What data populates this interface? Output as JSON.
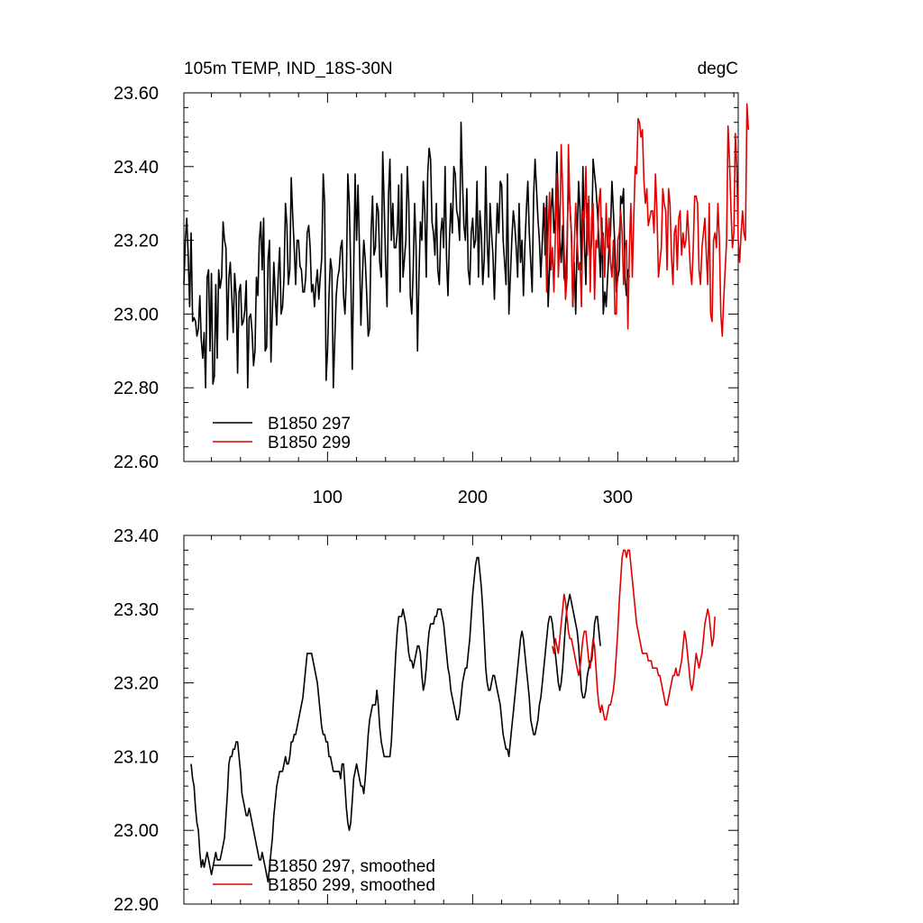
{
  "chart_data": [
    {
      "type": "line",
      "title": "105m TEMP, IND_18S-30N",
      "units": "degC",
      "xlim": [
        1,
        383
      ],
      "ylim": [
        22.6,
        23.6
      ],
      "xticks": [
        100,
        200,
        300
      ],
      "xtick_labels": [
        "100",
        "200",
        "300"
      ],
      "yticks": [
        22.6,
        22.8,
        23.0,
        23.2,
        23.4,
        23.6
      ],
      "ytick_labels": [
        "22.60",
        "22.80",
        "23.00",
        "23.20",
        "23.40",
        "23.60"
      ],
      "legend": "bottom-left",
      "series": [
        {
          "name": "B1850 297",
          "color": "#000000",
          "x_start": 1,
          "values": [
            23.08,
            23.2,
            23.26,
            23.16,
            23.02,
            23.22,
            22.98,
            22.99,
            22.98,
            22.94,
            22.96,
            23.05,
            22.93,
            22.88,
            22.95,
            22.8,
            23.1,
            23.12,
            22.9,
            23.11,
            22.81,
            22.83,
            23.08,
            22.88,
            23.12,
            23.07,
            23.1,
            23.25,
            23.2,
            23.18,
            22.93,
            23.1,
            23.14,
            23.05,
            22.95,
            23.11,
            23.05,
            22.84,
            23.06,
            23.08,
            22.97,
            22.98,
            23.01,
            23.09,
            22.8,
            22.99,
            23.0,
            22.95,
            22.86,
            22.9,
            23.1,
            23.05,
            23.2,
            23.25,
            23.12,
            23.26,
            22.9,
            22.91,
            23.15,
            23.2,
            22.87,
            23.01,
            23.14,
            23.05,
            22.97,
            23.1,
            23.18,
            23.0,
            23.02,
            23.1,
            23.3,
            23.24,
            23.08,
            23.12,
            23.37,
            23.27,
            23.18,
            23.08,
            23.2,
            23.2,
            23.13,
            23.12,
            23.06,
            23.06,
            23.1,
            23.22,
            23.24,
            23.18,
            23.06,
            23.08,
            23.02,
            23.08,
            23.12,
            23.04,
            23.1,
            23.15,
            23.38,
            23.3,
            22.82,
            22.9,
            23.05,
            23.15,
            23.12,
            22.8,
            22.93,
            23.05,
            23.1,
            23.12,
            23.18,
            23.2,
            23.05,
            23.0,
            23.1,
            23.38,
            23.3,
            23.12,
            22.85,
            23.12,
            23.38,
            23.2,
            23.35,
            23.18,
            22.97,
            23.1,
            23.2,
            23.15,
            23.05,
            22.94,
            22.96,
            23.22,
            23.32,
            23.16,
            23.18,
            23.3,
            23.28,
            23.14,
            23.1,
            23.44,
            23.3,
            23.14,
            23.02,
            23.32,
            23.42,
            23.2,
            23.3,
            23.18,
            23.18,
            23.22,
            23.35,
            23.06,
            23.38,
            23.1,
            23.15,
            23.2,
            23.4,
            23.3,
            23.05,
            23.0,
            23.12,
            23.3,
            23.18,
            22.9,
            23.1,
            23.25,
            23.2,
            23.36,
            23.28,
            23.1,
            23.38,
            23.45,
            23.42,
            23.25,
            23.22,
            23.16,
            23.3,
            23.12,
            23.08,
            23.22,
            23.26,
            23.18,
            23.4,
            23.15,
            23.05,
            23.2,
            23.3,
            23.22,
            23.4,
            23.38,
            23.28,
            23.26,
            23.2,
            23.52,
            23.36,
            23.24,
            23.2,
            23.34,
            23.12,
            23.08,
            23.22,
            23.26,
            23.18,
            23.2,
            23.36,
            23.1,
            23.28,
            23.22,
            23.08,
            23.15,
            23.4,
            23.2,
            23.1,
            23.3,
            23.22,
            23.16,
            23.04,
            23.18,
            23.3,
            23.22,
            23.36,
            23.35,
            23.2,
            23.14,
            23.08,
            23.38,
            23.0,
            23.1,
            23.2,
            23.28,
            23.24,
            23.18,
            23.1,
            23.3,
            23.14,
            23.2,
            23.05,
            23.18,
            23.28,
            23.36,
            23.22,
            23.14,
            23.06,
            23.32,
            23.42,
            23.34,
            23.26,
            23.2,
            23.1,
            23.2,
            23.3,
            23.16,
            23.32,
            23.02,
            23.12,
            23.28,
            23.34,
            23.22,
            23.26,
            23.44,
            23.3,
            23.2,
            23.14,
            23.24,
            23.1,
            23.08,
            23.18,
            23.36,
            23.3,
            23.22,
            23.02,
            23.14,
            23.0,
            23.2,
            23.36,
            23.28,
            23.12,
            23.4,
            23.2,
            23.08,
            23.3,
            23.22,
            23.14,
            23.2,
            23.42,
            23.38,
            23.34,
            23.28,
            23.2,
            23.1,
            23.26,
            23.0,
            23.06,
            23.02,
            23.1,
            23.18,
            23.22,
            23.36,
            23.28,
            23.18,
            23.06,
            23.1,
            23.12,
            23.32,
            23.3,
            23.34,
            23.1,
            23.05,
            23.12,
            23.1
          ]
        },
        {
          "name": "B1850 299",
          "color": "#e00000",
          "x_start": 250,
          "values": [
            23.29,
            23.06,
            23.22,
            23.33,
            23.12,
            23.18,
            23.06,
            23.21,
            23.38,
            23.1,
            23.2,
            23.46,
            23.34,
            23.18,
            23.04,
            23.1,
            23.46,
            23.3,
            23.22,
            23.02,
            23.18,
            23.3,
            23.2,
            23.12,
            23.14,
            23.02,
            23.28,
            23.26,
            23.4,
            23.16,
            23.32,
            23.06,
            23.26,
            23.3,
            23.04,
            23.2,
            23.18,
            23.3,
            23.34,
            23.16,
            23.22,
            23.1,
            23.3,
            23.18,
            23.26,
            23.14,
            23.1,
            23.2,
            23.0,
            23.0,
            23.2,
            23.22,
            23.28,
            23.22,
            23.08,
            23.18,
            23.2,
            22.96,
            23.18,
            23.3,
            23.1,
            23.26,
            23.4,
            23.38,
            23.53,
            23.52,
            23.48,
            23.5,
            23.36,
            23.3,
            23.34,
            23.24,
            23.26,
            23.28,
            23.28,
            23.22,
            23.38,
            23.28,
            23.1,
            23.14,
            23.18,
            23.34,
            23.3,
            23.28,
            23.12,
            23.34,
            23.3,
            23.16,
            23.08,
            23.22,
            23.24,
            23.12,
            23.26,
            23.28,
            23.16,
            23.22,
            23.18,
            23.2,
            23.28,
            23.2,
            23.12,
            23.08,
            23.18,
            23.32,
            23.32,
            23.3,
            23.12,
            23.08,
            23.18,
            23.22,
            23.26,
            23.16,
            23.08,
            23.3,
            23.0,
            22.98,
            23.2,
            23.22,
            23.18,
            23.3,
            23.2,
            23.0,
            22.94,
            23.04,
            23.12,
            23.2,
            23.51,
            23.42,
            23.28,
            23.18,
            23.22,
            23.49,
            23.4,
            23.2,
            23.14,
            23.22,
            23.28,
            23.22,
            23.2,
            23.57,
            23.5
          ]
        }
      ]
    },
    {
      "type": "line",
      "xlim": [
        1,
        383
      ],
      "ylim": [
        22.9,
        23.4
      ],
      "xticks": [
        100,
        200,
        300
      ],
      "yticks": [
        22.9,
        23.0,
        23.1,
        23.2,
        23.3,
        23.4
      ],
      "ytick_labels": [
        "22.90",
        "23.00",
        "23.10",
        "23.20",
        "23.30",
        "23.40"
      ],
      "legend": "bottom-left",
      "series": [
        {
          "name": "B1850 297, smoothed",
          "color": "#000000",
          "x_start": 6,
          "values": [
            23.09,
            23.07,
            23.06,
            23.03,
            23.01,
            23.0,
            22.97,
            22.95,
            22.96,
            22.95,
            22.96,
            22.97,
            22.96,
            22.95,
            22.94,
            22.95,
            22.96,
            22.97,
            22.96,
            22.96,
            22.96,
            22.97,
            22.98,
            22.99,
            23.02,
            23.05,
            23.09,
            23.1,
            23.1,
            23.11,
            23.11,
            23.12,
            23.12,
            23.1,
            23.08,
            23.05,
            23.04,
            23.03,
            23.02,
            23.02,
            23.03,
            23.02,
            23.01,
            23.0,
            22.99,
            22.98,
            22.97,
            22.96,
            22.96,
            22.97,
            22.96,
            22.95,
            22.94,
            22.93,
            22.95,
            22.97,
            22.99,
            23.02,
            23.04,
            23.06,
            23.07,
            23.08,
            23.08,
            23.08,
            23.09,
            23.1,
            23.09,
            23.09,
            23.1,
            23.12,
            23.12,
            23.13,
            23.13,
            23.14,
            23.15,
            23.16,
            23.17,
            23.18,
            23.2,
            23.22,
            23.24,
            23.24,
            23.24,
            23.24,
            23.23,
            23.22,
            23.21,
            23.2,
            23.18,
            23.16,
            23.14,
            23.13,
            23.13,
            23.12,
            23.12,
            23.1,
            23.1,
            23.09,
            23.08,
            23.08,
            23.08,
            23.08,
            23.08,
            23.07,
            23.09,
            23.09,
            23.06,
            23.03,
            23.01,
            23.0,
            23.01,
            23.04,
            23.07,
            23.08,
            23.09,
            23.08,
            23.07,
            23.06,
            23.06,
            23.05,
            23.07,
            23.1,
            23.13,
            23.15,
            23.16,
            23.17,
            23.17,
            23.17,
            23.19,
            23.17,
            23.14,
            23.12,
            23.11,
            23.1,
            23.1,
            23.1,
            23.1,
            23.1,
            23.12,
            23.16,
            23.2,
            23.24,
            23.27,
            23.29,
            23.29,
            23.29,
            23.3,
            23.29,
            23.28,
            23.26,
            23.24,
            23.23,
            23.23,
            23.22,
            23.23,
            23.24,
            23.25,
            23.25,
            23.24,
            23.21,
            23.19,
            23.2,
            23.22,
            23.25,
            23.27,
            23.28,
            23.28,
            23.28,
            23.29,
            23.29,
            23.3,
            23.3,
            23.3,
            23.29,
            23.28,
            23.26,
            23.24,
            23.22,
            23.21,
            23.19,
            23.18,
            23.17,
            23.16,
            23.15,
            23.15,
            23.16,
            23.18,
            23.2,
            23.21,
            23.22,
            23.22,
            23.24,
            23.26,
            23.29,
            23.32,
            23.34,
            23.36,
            23.37,
            23.37,
            23.35,
            23.33,
            23.3,
            23.26,
            23.22,
            23.2,
            23.19,
            23.19,
            23.2,
            23.21,
            23.21,
            23.2,
            23.19,
            23.18,
            23.17,
            23.15,
            23.13,
            23.12,
            23.11,
            23.11,
            23.1,
            23.12,
            23.14,
            23.16,
            23.18,
            23.2,
            23.22,
            23.24,
            23.26,
            23.27,
            23.26,
            23.24,
            23.22,
            23.2,
            23.18,
            23.15,
            23.14,
            23.13,
            23.13,
            23.14,
            23.15,
            23.17,
            23.18,
            23.2,
            23.22,
            23.24,
            23.26,
            23.28,
            23.29,
            23.29,
            23.28,
            23.26,
            23.24,
            23.22,
            23.2,
            23.19,
            23.2,
            23.22,
            23.25,
            23.28,
            23.3,
            23.31,
            23.32,
            23.31,
            23.3,
            23.29,
            23.28,
            23.27,
            23.25,
            23.22,
            23.19,
            23.18,
            23.18,
            23.19,
            23.21,
            23.22,
            23.23,
            23.23,
            23.25,
            23.28,
            23.29,
            23.29,
            23.27,
            23.25
          ]
        },
        {
          "name": "B1850 299, smoothed",
          "color": "#e00000",
          "x_start": 255,
          "values": [
            23.25,
            23.24,
            23.26,
            23.25,
            23.24,
            23.26,
            23.28,
            23.3,
            23.32,
            23.31,
            23.29,
            23.27,
            23.26,
            23.26,
            23.25,
            23.24,
            23.23,
            23.22,
            23.21,
            23.22,
            23.24,
            23.26,
            23.27,
            23.27,
            23.25,
            23.23,
            23.22,
            23.24,
            23.26,
            23.25,
            23.22,
            23.19,
            23.17,
            23.16,
            23.17,
            23.16,
            23.15,
            23.15,
            23.16,
            23.17,
            23.17,
            23.18,
            23.19,
            23.21,
            23.24,
            23.27,
            23.31,
            23.34,
            23.37,
            23.38,
            23.38,
            23.37,
            23.38,
            23.38,
            23.36,
            23.34,
            23.32,
            23.3,
            23.28,
            23.27,
            23.26,
            23.25,
            23.24,
            23.24,
            23.24,
            23.24,
            23.23,
            23.23,
            23.23,
            23.22,
            23.22,
            23.22,
            23.22,
            23.21,
            23.21,
            23.2,
            23.19,
            23.18,
            23.17,
            23.17,
            23.18,
            23.19,
            23.2,
            23.21,
            23.21,
            23.22,
            23.21,
            23.21,
            23.22,
            23.23,
            23.25,
            23.27,
            23.26,
            23.24,
            23.22,
            23.2,
            23.19,
            23.2,
            23.22,
            23.24,
            23.23,
            23.22,
            23.23,
            23.24,
            23.26,
            23.28,
            23.29,
            23.3,
            23.29,
            23.27,
            23.25,
            23.26,
            23.29
          ]
        }
      ]
    }
  ]
}
